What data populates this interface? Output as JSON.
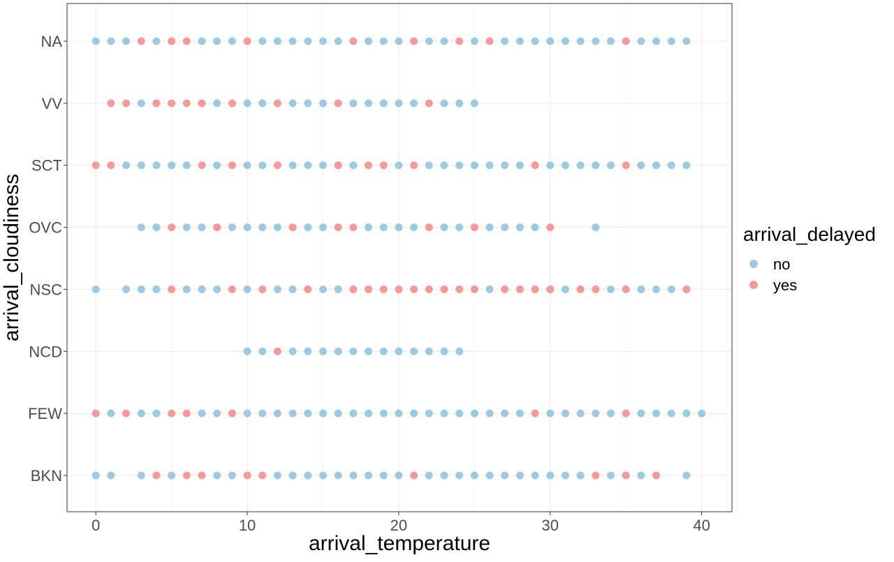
{
  "chart_data": {
    "type": "scatter",
    "xlabel": "arrival_temperature",
    "ylabel": "arrival_cloudiness",
    "xlim": [
      -1.9,
      42
    ],
    "x_ticks": [
      0,
      10,
      20,
      30,
      40
    ],
    "categories": [
      "BKN",
      "FEW",
      "NCD",
      "NSC",
      "OVC",
      "SCT",
      "VV",
      "NA"
    ],
    "grid": true,
    "legend": {
      "title": "arrival_delayed",
      "position": "right"
    },
    "colors": {
      "no": "#9ecae1",
      "yes": "#f59a9a"
    },
    "series": [
      {
        "name": "no",
        "points": [
          {
            "x": 0,
            "y": "NA"
          },
          {
            "x": 1,
            "y": "NA"
          },
          {
            "x": 2,
            "y": "NA"
          },
          {
            "x": 4,
            "y": "NA"
          },
          {
            "x": 7,
            "y": "NA"
          },
          {
            "x": 8,
            "y": "NA"
          },
          {
            "x": 9,
            "y": "NA"
          },
          {
            "x": 11,
            "y": "NA"
          },
          {
            "x": 12,
            "y": "NA"
          },
          {
            "x": 13,
            "y": "NA"
          },
          {
            "x": 14,
            "y": "NA"
          },
          {
            "x": 15,
            "y": "NA"
          },
          {
            "x": 16,
            "y": "NA"
          },
          {
            "x": 18,
            "y": "NA"
          },
          {
            "x": 19,
            "y": "NA"
          },
          {
            "x": 20,
            "y": "NA"
          },
          {
            "x": 22,
            "y": "NA"
          },
          {
            "x": 23,
            "y": "NA"
          },
          {
            "x": 25,
            "y": "NA"
          },
          {
            "x": 27,
            "y": "NA"
          },
          {
            "x": 28,
            "y": "NA"
          },
          {
            "x": 29,
            "y": "NA"
          },
          {
            "x": 30,
            "y": "NA"
          },
          {
            "x": 31,
            "y": "NA"
          },
          {
            "x": 32,
            "y": "NA"
          },
          {
            "x": 33,
            "y": "NA"
          },
          {
            "x": 34,
            "y": "NA"
          },
          {
            "x": 36,
            "y": "NA"
          },
          {
            "x": 37,
            "y": "NA"
          },
          {
            "x": 38,
            "y": "NA"
          },
          {
            "x": 39,
            "y": "NA"
          },
          {
            "x": 3,
            "y": "VV"
          },
          {
            "x": 8,
            "y": "VV"
          },
          {
            "x": 10,
            "y": "VV"
          },
          {
            "x": 11,
            "y": "VV"
          },
          {
            "x": 13,
            "y": "VV"
          },
          {
            "x": 14,
            "y": "VV"
          },
          {
            "x": 15,
            "y": "VV"
          },
          {
            "x": 17,
            "y": "VV"
          },
          {
            "x": 18,
            "y": "VV"
          },
          {
            "x": 19,
            "y": "VV"
          },
          {
            "x": 20,
            "y": "VV"
          },
          {
            "x": 21,
            "y": "VV"
          },
          {
            "x": 23,
            "y": "VV"
          },
          {
            "x": 24,
            "y": "VV"
          },
          {
            "x": 25,
            "y": "VV"
          },
          {
            "x": 2,
            "y": "SCT"
          },
          {
            "x": 3,
            "y": "SCT"
          },
          {
            "x": 4,
            "y": "SCT"
          },
          {
            "x": 5,
            "y": "SCT"
          },
          {
            "x": 6,
            "y": "SCT"
          },
          {
            "x": 8,
            "y": "SCT"
          },
          {
            "x": 10,
            "y": "SCT"
          },
          {
            "x": 11,
            "y": "SCT"
          },
          {
            "x": 13,
            "y": "SCT"
          },
          {
            "x": 14,
            "y": "SCT"
          },
          {
            "x": 15,
            "y": "SCT"
          },
          {
            "x": 17,
            "y": "SCT"
          },
          {
            "x": 20,
            "y": "SCT"
          },
          {
            "x": 22,
            "y": "SCT"
          },
          {
            "x": 23,
            "y": "SCT"
          },
          {
            "x": 24,
            "y": "SCT"
          },
          {
            "x": 25,
            "y": "SCT"
          },
          {
            "x": 26,
            "y": "SCT"
          },
          {
            "x": 27,
            "y": "SCT"
          },
          {
            "x": 28,
            "y": "SCT"
          },
          {
            "x": 30,
            "y": "SCT"
          },
          {
            "x": 31,
            "y": "SCT"
          },
          {
            "x": 32,
            "y": "SCT"
          },
          {
            "x": 33,
            "y": "SCT"
          },
          {
            "x": 34,
            "y": "SCT"
          },
          {
            "x": 36,
            "y": "SCT"
          },
          {
            "x": 37,
            "y": "SCT"
          },
          {
            "x": 38,
            "y": "SCT"
          },
          {
            "x": 39,
            "y": "SCT"
          },
          {
            "x": 3,
            "y": "OVC"
          },
          {
            "x": 4,
            "y": "OVC"
          },
          {
            "x": 6,
            "y": "OVC"
          },
          {
            "x": 7,
            "y": "OVC"
          },
          {
            "x": 9,
            "y": "OVC"
          },
          {
            "x": 10,
            "y": "OVC"
          },
          {
            "x": 11,
            "y": "OVC"
          },
          {
            "x": 12,
            "y": "OVC"
          },
          {
            "x": 14,
            "y": "OVC"
          },
          {
            "x": 15,
            "y": "OVC"
          },
          {
            "x": 18,
            "y": "OVC"
          },
          {
            "x": 19,
            "y": "OVC"
          },
          {
            "x": 20,
            "y": "OVC"
          },
          {
            "x": 21,
            "y": "OVC"
          },
          {
            "x": 23,
            "y": "OVC"
          },
          {
            "x": 24,
            "y": "OVC"
          },
          {
            "x": 26,
            "y": "OVC"
          },
          {
            "x": 27,
            "y": "OVC"
          },
          {
            "x": 28,
            "y": "OVC"
          },
          {
            "x": 29,
            "y": "OVC"
          },
          {
            "x": 33,
            "y": "OVC"
          },
          {
            "x": 0,
            "y": "NSC"
          },
          {
            "x": 2,
            "y": "NSC"
          },
          {
            "x": 3,
            "y": "NSC"
          },
          {
            "x": 4,
            "y": "NSC"
          },
          {
            "x": 6,
            "y": "NSC"
          },
          {
            "x": 7,
            "y": "NSC"
          },
          {
            "x": 8,
            "y": "NSC"
          },
          {
            "x": 10,
            "y": "NSC"
          },
          {
            "x": 12,
            "y": "NSC"
          },
          {
            "x": 13,
            "y": "NSC"
          },
          {
            "x": 15,
            "y": "NSC"
          },
          {
            "x": 16,
            "y": "NSC"
          },
          {
            "x": 26,
            "y": "NSC"
          },
          {
            "x": 31,
            "y": "NSC"
          },
          {
            "x": 34,
            "y": "NSC"
          },
          {
            "x": 36,
            "y": "NSC"
          },
          {
            "x": 37,
            "y": "NSC"
          },
          {
            "x": 38,
            "y": "NSC"
          },
          {
            "x": 10,
            "y": "NCD"
          },
          {
            "x": 11,
            "y": "NCD"
          },
          {
            "x": 13,
            "y": "NCD"
          },
          {
            "x": 14,
            "y": "NCD"
          },
          {
            "x": 15,
            "y": "NCD"
          },
          {
            "x": 16,
            "y": "NCD"
          },
          {
            "x": 17,
            "y": "NCD"
          },
          {
            "x": 18,
            "y": "NCD"
          },
          {
            "x": 19,
            "y": "NCD"
          },
          {
            "x": 20,
            "y": "NCD"
          },
          {
            "x": 21,
            "y": "NCD"
          },
          {
            "x": 22,
            "y": "NCD"
          },
          {
            "x": 23,
            "y": "NCD"
          },
          {
            "x": 24,
            "y": "NCD"
          },
          {
            "x": 1,
            "y": "FEW"
          },
          {
            "x": 3,
            "y": "FEW"
          },
          {
            "x": 4,
            "y": "FEW"
          },
          {
            "x": 7,
            "y": "FEW"
          },
          {
            "x": 8,
            "y": "FEW"
          },
          {
            "x": 10,
            "y": "FEW"
          },
          {
            "x": 11,
            "y": "FEW"
          },
          {
            "x": 12,
            "y": "FEW"
          },
          {
            "x": 13,
            "y": "FEW"
          },
          {
            "x": 14,
            "y": "FEW"
          },
          {
            "x": 15,
            "y": "FEW"
          },
          {
            "x": 16,
            "y": "FEW"
          },
          {
            "x": 17,
            "y": "FEW"
          },
          {
            "x": 18,
            "y": "FEW"
          },
          {
            "x": 19,
            "y": "FEW"
          },
          {
            "x": 20,
            "y": "FEW"
          },
          {
            "x": 21,
            "y": "FEW"
          },
          {
            "x": 22,
            "y": "FEW"
          },
          {
            "x": 23,
            "y": "FEW"
          },
          {
            "x": 24,
            "y": "FEW"
          },
          {
            "x": 25,
            "y": "FEW"
          },
          {
            "x": 26,
            "y": "FEW"
          },
          {
            "x": 27,
            "y": "FEW"
          },
          {
            "x": 28,
            "y": "FEW"
          },
          {
            "x": 30,
            "y": "FEW"
          },
          {
            "x": 31,
            "y": "FEW"
          },
          {
            "x": 32,
            "y": "FEW"
          },
          {
            "x": 33,
            "y": "FEW"
          },
          {
            "x": 34,
            "y": "FEW"
          },
          {
            "x": 36,
            "y": "FEW"
          },
          {
            "x": 37,
            "y": "FEW"
          },
          {
            "x": 38,
            "y": "FEW"
          },
          {
            "x": 39,
            "y": "FEW"
          },
          {
            "x": 40,
            "y": "FEW"
          },
          {
            "x": 0,
            "y": "BKN"
          },
          {
            "x": 1,
            "y": "BKN"
          },
          {
            "x": 3,
            "y": "BKN"
          },
          {
            "x": 5,
            "y": "BKN"
          },
          {
            "x": 8,
            "y": "BKN"
          },
          {
            "x": 9,
            "y": "BKN"
          },
          {
            "x": 12,
            "y": "BKN"
          },
          {
            "x": 13,
            "y": "BKN"
          },
          {
            "x": 14,
            "y": "BKN"
          },
          {
            "x": 15,
            "y": "BKN"
          },
          {
            "x": 16,
            "y": "BKN"
          },
          {
            "x": 17,
            "y": "BKN"
          },
          {
            "x": 18,
            "y": "BKN"
          },
          {
            "x": 19,
            "y": "BKN"
          },
          {
            "x": 20,
            "y": "BKN"
          },
          {
            "x": 22,
            "y": "BKN"
          },
          {
            "x": 23,
            "y": "BKN"
          },
          {
            "x": 24,
            "y": "BKN"
          },
          {
            "x": 25,
            "y": "BKN"
          },
          {
            "x": 26,
            "y": "BKN"
          },
          {
            "x": 27,
            "y": "BKN"
          },
          {
            "x": 28,
            "y": "BKN"
          },
          {
            "x": 29,
            "y": "BKN"
          },
          {
            "x": 30,
            "y": "BKN"
          },
          {
            "x": 31,
            "y": "BKN"
          },
          {
            "x": 32,
            "y": "BKN"
          },
          {
            "x": 34,
            "y": "BKN"
          },
          {
            "x": 36,
            "y": "BKN"
          },
          {
            "x": 39,
            "y": "BKN"
          }
        ]
      },
      {
        "name": "yes",
        "points": [
          {
            "x": 3,
            "y": "NA"
          },
          {
            "x": 5,
            "y": "NA"
          },
          {
            "x": 6,
            "y": "NA"
          },
          {
            "x": 10,
            "y": "NA"
          },
          {
            "x": 17,
            "y": "NA"
          },
          {
            "x": 21,
            "y": "NA"
          },
          {
            "x": 24,
            "y": "NA"
          },
          {
            "x": 26,
            "y": "NA"
          },
          {
            "x": 35,
            "y": "NA"
          },
          {
            "x": 1,
            "y": "VV"
          },
          {
            "x": 2,
            "y": "VV"
          },
          {
            "x": 4,
            "y": "VV"
          },
          {
            "x": 5,
            "y": "VV"
          },
          {
            "x": 6,
            "y": "VV"
          },
          {
            "x": 7,
            "y": "VV"
          },
          {
            "x": 9,
            "y": "VV"
          },
          {
            "x": 12,
            "y": "VV"
          },
          {
            "x": 16,
            "y": "VV"
          },
          {
            "x": 22,
            "y": "VV"
          },
          {
            "x": 0,
            "y": "SCT"
          },
          {
            "x": 1,
            "y": "SCT"
          },
          {
            "x": 7,
            "y": "SCT"
          },
          {
            "x": 9,
            "y": "SCT"
          },
          {
            "x": 12,
            "y": "SCT"
          },
          {
            "x": 16,
            "y": "SCT"
          },
          {
            "x": 18,
            "y": "SCT"
          },
          {
            "x": 19,
            "y": "SCT"
          },
          {
            "x": 21,
            "y": "SCT"
          },
          {
            "x": 29,
            "y": "SCT"
          },
          {
            "x": 35,
            "y": "SCT"
          },
          {
            "x": 5,
            "y": "OVC"
          },
          {
            "x": 8,
            "y": "OVC"
          },
          {
            "x": 13,
            "y": "OVC"
          },
          {
            "x": 16,
            "y": "OVC"
          },
          {
            "x": 17,
            "y": "OVC"
          },
          {
            "x": 22,
            "y": "OVC"
          },
          {
            "x": 25,
            "y": "OVC"
          },
          {
            "x": 30,
            "y": "OVC"
          },
          {
            "x": 5,
            "y": "NSC"
          },
          {
            "x": 9,
            "y": "NSC"
          },
          {
            "x": 11,
            "y": "NSC"
          },
          {
            "x": 14,
            "y": "NSC"
          },
          {
            "x": 17,
            "y": "NSC"
          },
          {
            "x": 18,
            "y": "NSC"
          },
          {
            "x": 19,
            "y": "NSC"
          },
          {
            "x": 20,
            "y": "NSC"
          },
          {
            "x": 21,
            "y": "NSC"
          },
          {
            "x": 22,
            "y": "NSC"
          },
          {
            "x": 23,
            "y": "NSC"
          },
          {
            "x": 24,
            "y": "NSC"
          },
          {
            "x": 25,
            "y": "NSC"
          },
          {
            "x": 27,
            "y": "NSC"
          },
          {
            "x": 28,
            "y": "NSC"
          },
          {
            "x": 29,
            "y": "NSC"
          },
          {
            "x": 30,
            "y": "NSC"
          },
          {
            "x": 32,
            "y": "NSC"
          },
          {
            "x": 33,
            "y": "NSC"
          },
          {
            "x": 35,
            "y": "NSC"
          },
          {
            "x": 39,
            "y": "NSC"
          },
          {
            "x": 12,
            "y": "NCD"
          },
          {
            "x": 0,
            "y": "FEW"
          },
          {
            "x": 2,
            "y": "FEW"
          },
          {
            "x": 5,
            "y": "FEW"
          },
          {
            "x": 6,
            "y": "FEW"
          },
          {
            "x": 9,
            "y": "FEW"
          },
          {
            "x": 29,
            "y": "FEW"
          },
          {
            "x": 35,
            "y": "FEW"
          },
          {
            "x": 4,
            "y": "BKN"
          },
          {
            "x": 6,
            "y": "BKN"
          },
          {
            "x": 7,
            "y": "BKN"
          },
          {
            "x": 10,
            "y": "BKN"
          },
          {
            "x": 11,
            "y": "BKN"
          },
          {
            "x": 21,
            "y": "BKN"
          },
          {
            "x": 33,
            "y": "BKN"
          },
          {
            "x": 35,
            "y": "BKN"
          },
          {
            "x": 37,
            "y": "BKN"
          }
        ]
      }
    ]
  }
}
